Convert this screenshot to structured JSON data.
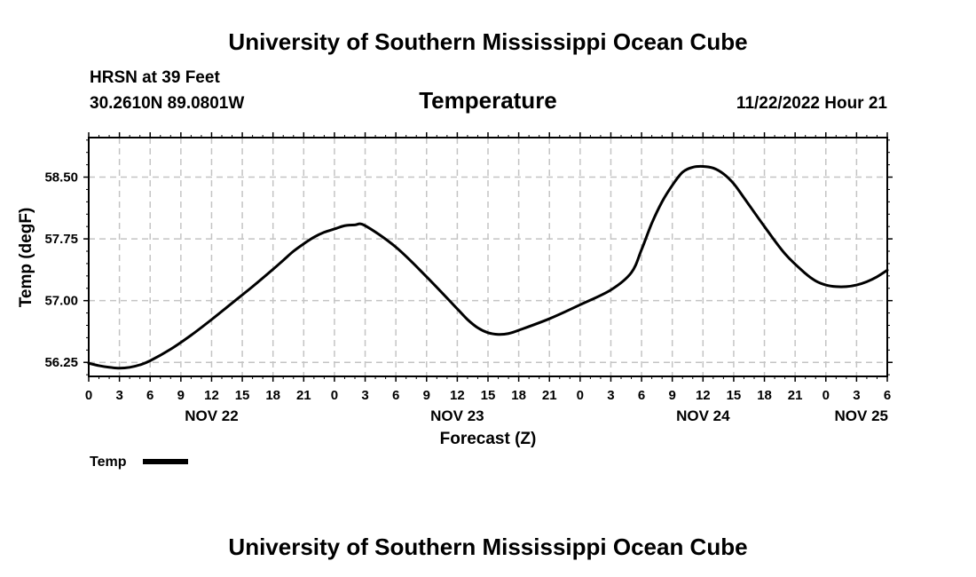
{
  "header": {
    "title": "University of Southern Mississippi Ocean Cube",
    "station": "HRSN at 39 Feet",
    "coords": "30.2610N  89.0801W",
    "datetime": "11/22/2022 Hour 21"
  },
  "footer": {
    "title": "University of Southern Mississippi Ocean Cube"
  },
  "colors": {
    "line": "#000000",
    "grid": "#c4c4c4",
    "background": "#ffffff"
  },
  "chart_data": {
    "type": "line",
    "title": "Temperature",
    "xlabel": "Forecast (Z)",
    "ylabel": "Temp (degF)",
    "ylim": [
      56.08,
      58.98
    ],
    "xlim": [
      0,
      78
    ],
    "grid": true,
    "yticks": [
      56.25,
      57.0,
      57.75,
      58.5
    ],
    "ytick_labels": [
      "56.25",
      "57.00",
      "57.75",
      "58.50"
    ],
    "xtick_values": [
      0,
      3,
      6,
      9,
      12,
      15,
      18,
      21,
      24,
      27,
      30,
      33,
      36,
      39,
      42,
      45,
      48,
      51,
      54,
      57,
      60,
      63,
      66,
      69,
      72,
      75,
      78
    ],
    "xtick_labels": [
      "0",
      "3",
      "6",
      "9",
      "12",
      "15",
      "18",
      "21",
      "0",
      "3",
      "6",
      "9",
      "12",
      "15",
      "18",
      "21",
      "0",
      "3",
      "6",
      "9",
      "12",
      "15",
      "18",
      "21",
      "0",
      "3",
      "6"
    ],
    "date_labels": [
      {
        "label": "NOV 22",
        "x": 12
      },
      {
        "label": "NOV 23",
        "x": 36
      },
      {
        "label": "NOV 24",
        "x": 60
      },
      {
        "label": "NOV 25",
        "x": 72
      }
    ],
    "legend": {
      "label": "Temp",
      "position": "bottom-left"
    },
    "series": [
      {
        "name": "Temp",
        "x": [
          0,
          1,
          2,
          3,
          4,
          5,
          6,
          8,
          10,
          12,
          14,
          16,
          18,
          19,
          20,
          21,
          22,
          23,
          24,
          25,
          26,
          27,
          30,
          33,
          36,
          37,
          38,
          39,
          40,
          41,
          42,
          45,
          48,
          51,
          53,
          54,
          55,
          56,
          57,
          58,
          59,
          60,
          61,
          62,
          63,
          64,
          66,
          68,
          70,
          71,
          72,
          73,
          74,
          75,
          76,
          77,
          78
        ],
        "values": [
          56.24,
          56.21,
          56.19,
          56.18,
          56.19,
          56.22,
          56.27,
          56.41,
          56.58,
          56.77,
          56.97,
          57.17,
          57.38,
          57.49,
          57.6,
          57.69,
          57.77,
          57.83,
          57.87,
          57.91,
          57.92,
          57.91,
          57.65,
          57.29,
          56.9,
          56.77,
          56.67,
          56.61,
          56.59,
          56.6,
          56.64,
          56.78,
          56.95,
          57.13,
          57.34,
          57.62,
          57.94,
          58.2,
          58.4,
          58.56,
          58.62,
          58.63,
          58.61,
          58.54,
          58.42,
          58.25,
          57.9,
          57.57,
          57.33,
          57.24,
          57.19,
          57.17,
          57.17,
          57.19,
          57.23,
          57.29,
          57.37
        ]
      }
    ]
  }
}
